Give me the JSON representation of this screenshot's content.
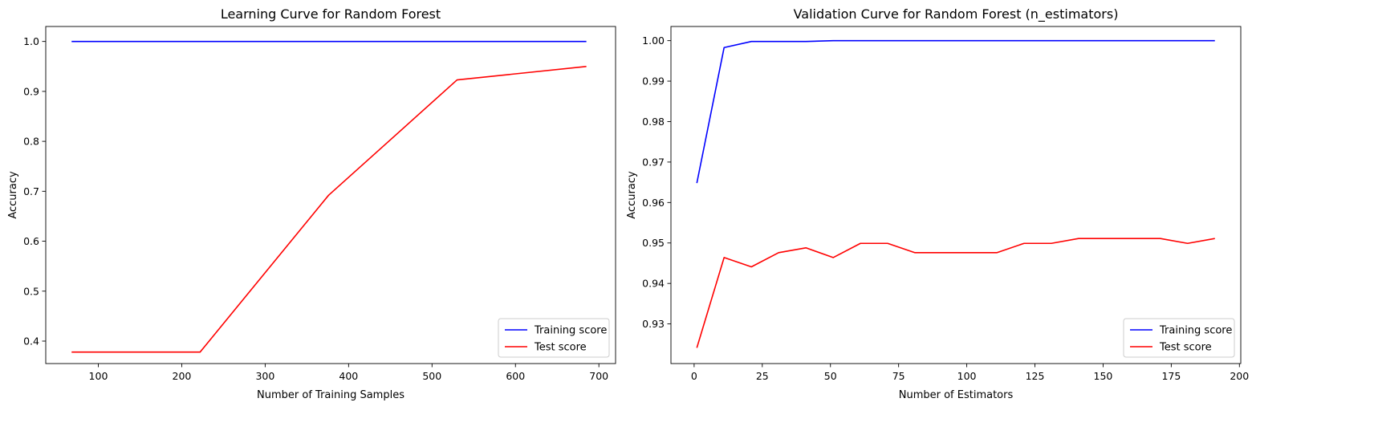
{
  "chart_data": [
    {
      "type": "line",
      "title": "Learning Curve for Random Forest",
      "xlabel": "Number of Training Samples",
      "ylabel": "Accuracy",
      "xlim": [
        37,
        720
      ],
      "ylim": [
        0.355,
        1.03
      ],
      "xticks": [
        100,
        200,
        300,
        400,
        500,
        600,
        700
      ],
      "xtick_labels": [
        "100",
        "200",
        "300",
        "400",
        "500",
        "600",
        "700"
      ],
      "yticks": [
        0.4,
        0.5,
        0.6,
        0.7,
        0.8,
        0.9,
        1.0
      ],
      "ytick_labels": [
        "0.4",
        "0.5",
        "0.6",
        "0.7",
        "0.8",
        "0.9",
        "1.0"
      ],
      "legend_position": "lower-right",
      "grid": false,
      "x": [
        68,
        222,
        376,
        530,
        685
      ],
      "series": [
        {
          "name": "Training score",
          "color": "#0000ff",
          "values": [
            1.0,
            1.0,
            1.0,
            1.0,
            1.0
          ]
        },
        {
          "name": "Test score",
          "color": "#ff0000",
          "values": [
            0.378,
            0.378,
            0.692,
            0.923,
            0.95
          ]
        }
      ]
    },
    {
      "type": "line",
      "title": "Validation Curve for Random Forest (n_estimators)",
      "xlabel": "Number of Estimators",
      "ylabel": "Accuracy",
      "xlim": [
        -8.5,
        200.5
      ],
      "ylim": [
        0.9202,
        1.0035
      ],
      "xticks": [
        0,
        25,
        50,
        75,
        100,
        125,
        150,
        175,
        200
      ],
      "xtick_labels": [
        "0",
        "25",
        "50",
        "75",
        "100",
        "125",
        "150",
        "175",
        "200"
      ],
      "yticks": [
        0.93,
        0.94,
        0.95,
        0.96,
        0.97,
        0.98,
        0.99,
        1.0
      ],
      "ytick_labels": [
        "0.93",
        "0.94",
        "0.95",
        "0.96",
        "0.97",
        "0.98",
        "0.99",
        "1.00"
      ],
      "legend_position": "lower-right",
      "grid": false,
      "x": [
        1,
        11,
        21,
        31,
        41,
        51,
        61,
        71,
        81,
        91,
        101,
        111,
        121,
        131,
        141,
        151,
        161,
        171,
        181,
        191
      ],
      "series": [
        {
          "name": "Training score",
          "color": "#0000ff",
          "values": [
            0.9648,
            0.9983,
            0.9998,
            0.9998,
            0.9998,
            1.0,
            1.0,
            1.0,
            1.0,
            1.0,
            1.0,
            1.0,
            1.0,
            1.0,
            1.0,
            1.0,
            1.0,
            1.0,
            1.0,
            1.0
          ]
        },
        {
          "name": "Test score",
          "color": "#ff0000",
          "values": [
            0.9241,
            0.9464,
            0.9441,
            0.9476,
            0.9488,
            0.9464,
            0.9499,
            0.9499,
            0.9476,
            0.9476,
            0.9476,
            0.9476,
            0.9499,
            0.9499,
            0.9511,
            0.9511,
            0.9511,
            0.9511,
            0.9499,
            0.9511
          ]
        }
      ]
    }
  ]
}
